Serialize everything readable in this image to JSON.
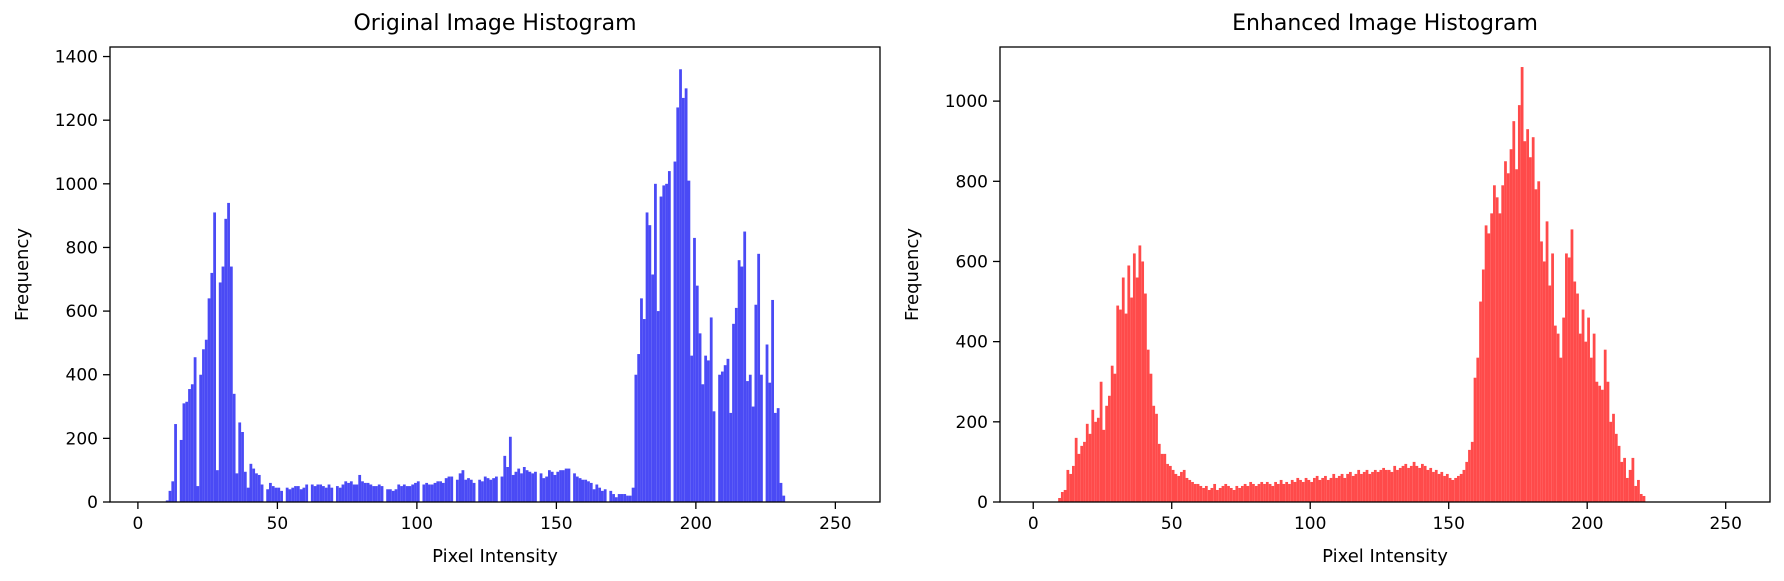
{
  "chart_data": [
    {
      "type": "bar",
      "title": "Original Image Histogram",
      "xlabel": "Pixel Intensity",
      "ylabel": "Frequency",
      "xlim": [
        -10,
        266
      ],
      "ylim": [
        0,
        1430
      ],
      "xticks": [
        0,
        50,
        100,
        150,
        200,
        250
      ],
      "yticks": [
        0,
        200,
        400,
        600,
        800,
        1000,
        1200,
        1400
      ],
      "grid": false,
      "color": "#4a4af5",
      "bin_start": 0,
      "values": [
        0,
        0,
        0,
        0,
        0,
        0,
        0,
        0,
        0,
        0,
        5,
        35,
        65,
        245,
        0,
        195,
        310,
        315,
        355,
        370,
        455,
        50,
        400,
        480,
        510,
        640,
        720,
        910,
        100,
        690,
        740,
        890,
        940,
        740,
        340,
        90,
        250,
        220,
        95,
        45,
        120,
        105,
        90,
        85,
        55,
        0,
        40,
        60,
        50,
        45,
        45,
        35,
        0,
        45,
        40,
        45,
        50,
        50,
        40,
        45,
        55,
        0,
        55,
        50,
        55,
        55,
        50,
        45,
        55,
        45,
        0,
        50,
        45,
        55,
        65,
        60,
        65,
        55,
        55,
        85,
        65,
        60,
        60,
        55,
        50,
        50,
        55,
        50,
        0,
        40,
        40,
        35,
        40,
        55,
        50,
        55,
        50,
        50,
        55,
        60,
        65,
        0,
        55,
        60,
        55,
        55,
        60,
        65,
        65,
        60,
        75,
        80,
        80,
        0,
        70,
        90,
        100,
        70,
        75,
        70,
        60,
        0,
        70,
        65,
        80,
        75,
        70,
        75,
        80,
        0,
        80,
        145,
        110,
        205,
        85,
        95,
        105,
        90,
        110,
        100,
        95,
        90,
        95,
        0,
        90,
        75,
        80,
        100,
        95,
        85,
        95,
        100,
        100,
        105,
        105,
        0,
        90,
        80,
        75,
        70,
        70,
        65,
        60,
        40,
        55,
        45,
        35,
        40,
        0,
        35,
        25,
        15,
        25,
        25,
        25,
        20,
        20,
        45,
        400,
        465,
        640,
        575,
        910,
        870,
        715,
        1000,
        600,
        960,
        995,
        1000,
        1040,
        0,
        1070,
        1240,
        1360,
        1270,
        1300,
        1010,
        460,
        830,
        680,
        530,
        370,
        460,
        445,
        580,
        285,
        0,
        400,
        410,
        430,
        450,
        280,
        560,
        610,
        760,
        740,
        850,
        380,
        400,
        300,
        620,
        780,
        400,
        0,
        495,
        375,
        635,
        280,
        295,
        60,
        20,
        0,
        0,
        0,
        0,
        0,
        0,
        0,
        0,
        0,
        0,
        0,
        0,
        0,
        0,
        0,
        0,
        0
      ]
    },
    {
      "type": "bar",
      "title": "Enhanced Image Histogram",
      "xlabel": "Pixel Intensity",
      "ylabel": "Frequency",
      "xlim": [
        -12,
        266
      ],
      "ylim": [
        0,
        1135
      ],
      "xticks": [
        0,
        50,
        100,
        150,
        200,
        250
      ],
      "yticks": [
        0,
        200,
        400,
        600,
        800,
        1000
      ],
      "grid": false,
      "color": "#ff4a4a",
      "bin_start": 0,
      "values": [
        0,
        0,
        0,
        0,
        0,
        0,
        0,
        0,
        0,
        10,
        25,
        30,
        80,
        70,
        90,
        160,
        120,
        140,
        150,
        195,
        170,
        230,
        200,
        210,
        300,
        180,
        240,
        265,
        340,
        320,
        490,
        480,
        560,
        470,
        590,
        510,
        620,
        560,
        640,
        600,
        520,
        380,
        320,
        240,
        220,
        145,
        120,
        120,
        95,
        90,
        80,
        70,
        65,
        75,
        80,
        60,
        55,
        50,
        45,
        45,
        40,
        35,
        40,
        30,
        35,
        45,
        30,
        35,
        40,
        45,
        40,
        35,
        30,
        40,
        35,
        40,
        45,
        40,
        50,
        45,
        40,
        45,
        50,
        45,
        50,
        45,
        40,
        50,
        45,
        55,
        45,
        50,
        45,
        55,
        50,
        60,
        55,
        50,
        60,
        55,
        50,
        60,
        65,
        55,
        60,
        65,
        55,
        60,
        70,
        60,
        65,
        70,
        60,
        70,
        75,
        65,
        70,
        80,
        70,
        75,
        80,
        70,
        75,
        80,
        75,
        80,
        85,
        80,
        80,
        75,
        90,
        80,
        85,
        90,
        95,
        85,
        90,
        100,
        90,
        85,
        95,
        90,
        80,
        85,
        75,
        80,
        70,
        75,
        65,
        70,
        60,
        55,
        60,
        65,
        70,
        80,
        100,
        130,
        150,
        310,
        360,
        500,
        580,
        690,
        670,
        720,
        790,
        760,
        720,
        790,
        850,
        820,
        880,
        950,
        830,
        990,
        1085,
        900,
        930,
        860,
        910,
        780,
        800,
        650,
        600,
        700,
        540,
        620,
        440,
        420,
        360,
        460,
        620,
        610,
        680,
        550,
        520,
        420,
        480,
        400,
        460,
        360,
        420,
        300,
        290,
        280,
        380,
        300,
        200,
        220,
        170,
        140,
        100,
        110,
        60,
        80,
        110,
        40,
        55,
        20,
        15,
        0,
        0,
        0,
        0,
        0,
        0,
        0,
        0,
        0
      ]
    }
  ]
}
